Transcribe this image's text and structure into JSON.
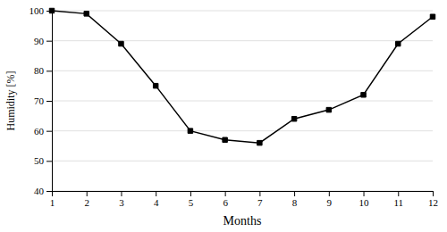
{
  "chart_data": {
    "type": "line",
    "x": [
      1,
      2,
      3,
      4,
      5,
      6,
      7,
      8,
      9,
      10,
      11,
      12
    ],
    "values": [
      100,
      99,
      89,
      75,
      60,
      57,
      56,
      64,
      67,
      72,
      89,
      98
    ],
    "xlabel": "Months",
    "ylabel": "Humidity [%]",
    "xlim": [
      1,
      12
    ],
    "ylim": [
      40,
      100
    ],
    "xticks": [
      1,
      2,
      3,
      4,
      5,
      6,
      7,
      8,
      9,
      10,
      11,
      12
    ],
    "yticks": [
      40,
      50,
      60,
      70,
      80,
      90,
      100
    ],
    "color": "#000000",
    "marker": "square",
    "grid": "y"
  }
}
